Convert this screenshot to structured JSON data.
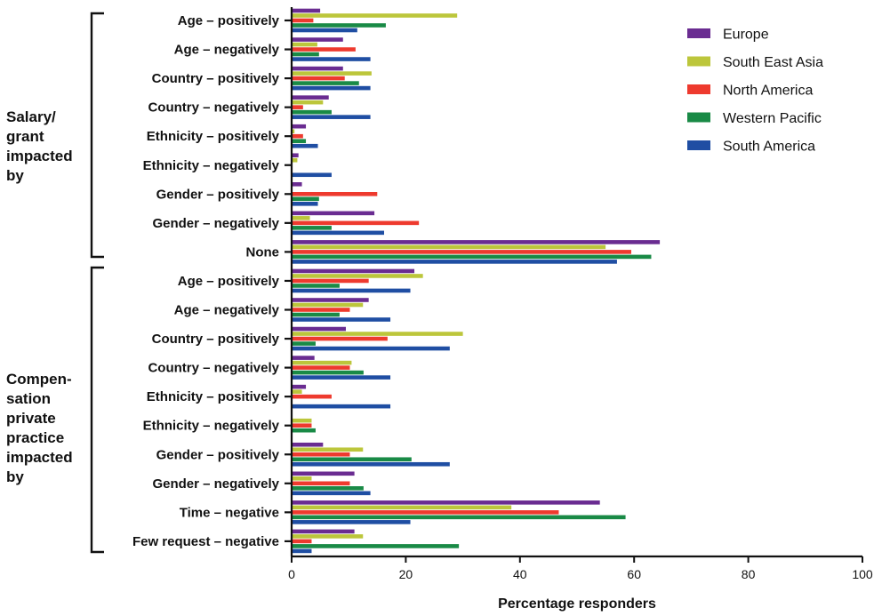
{
  "chart_data": {
    "type": "bar",
    "orientation": "horizontal",
    "xlabel": "Percentage responders",
    "xlim": [
      0,
      100
    ],
    "xticks": [
      "0",
      "20",
      "40",
      "60",
      "80",
      "100"
    ],
    "legend_position": "top-right",
    "groups": [
      {
        "label": "Salary/ grant impacted by",
        "label_lines": [
          "Salary/",
          "grant",
          "impacted",
          "by"
        ],
        "categories": [
          "Age – positively",
          "Age – negatively",
          "Country – positively",
          "Country – negatively",
          "Ethnicity – positively",
          "Ethnicity – negatively",
          "Gender – positively",
          "Gender – negatively",
          "None"
        ]
      },
      {
        "label": "Compen-sation private practice impacted by",
        "label_lines": [
          "Compen-",
          "sation",
          "private",
          "practice",
          "impacted",
          "by"
        ],
        "categories": [
          "Age – positively",
          "Age – negatively",
          "Country – positively",
          "Country – negatively",
          "Ethnicity – positively",
          "Ethnicity – negatively",
          "Gender – positively",
          "Gender – negatively",
          "Time – negative",
          "Few request – negative"
        ]
      }
    ],
    "series": [
      {
        "name": "Europe",
        "color": "#6a2c91",
        "values": [
          5,
          9,
          9,
          6.5,
          2.5,
          1.2,
          1.8,
          14.5,
          64.5,
          21.5,
          13.5,
          9.5,
          4,
          2.5,
          0,
          5.5,
          11,
          54
        ]
      },
      {
        "name": "South East Asia",
        "color": "#bcc63b",
        "values": [
          29,
          4.5,
          14,
          5.5,
          0.5,
          1,
          0,
          3.2,
          55,
          23,
          12.5,
          30,
          10.5,
          1.8,
          3.5,
          12.5,
          3.5,
          38.5
        ]
      },
      {
        "name": "North America",
        "color": "#ee3a2e",
        "values": [
          3.8,
          11.2,
          9.3,
          2,
          2,
          0,
          15,
          22.3,
          59.5,
          13.5,
          10.2,
          16.8,
          10.2,
          7,
          3.5,
          10.2,
          10.2,
          46.8
        ]
      },
      {
        "name": "Western Pacific",
        "color": "#198a46",
        "values": [
          16.5,
          4.8,
          11.8,
          7,
          2.5,
          0,
          4.8,
          7,
          63,
          8.4,
          8.4,
          4.2,
          12.6,
          0,
          4.2,
          21,
          12.6,
          58.5
        ]
      },
      {
        "name": "South America",
        "color": "#1f4ea3",
        "values": [
          11.5,
          13.8,
          13.8,
          13.8,
          4.6,
          7,
          4.6,
          16.2,
          57,
          20.8,
          17.3,
          27.7,
          17.3,
          17.3,
          0,
          27.7,
          13.8,
          20.8
        ]
      }
    ],
    "few_request_values": [
      11,
      12.5,
      3.5,
      29.3,
      3.5
    ]
  }
}
